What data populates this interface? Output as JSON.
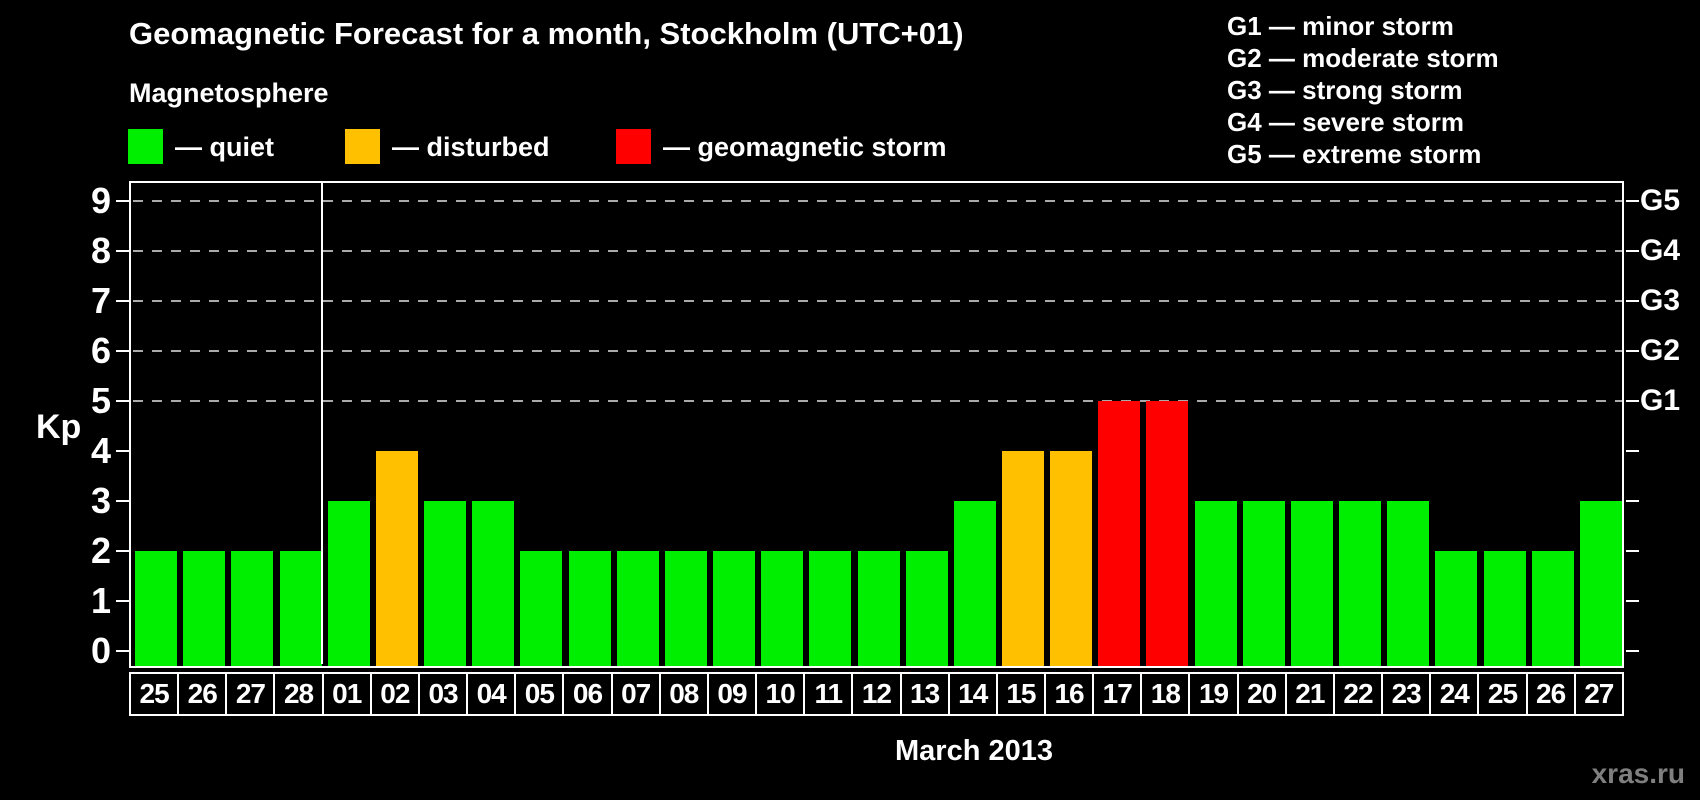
{
  "header": {
    "title": "Geomagnetic Forecast for a month, Stockholm (UTC+01)"
  },
  "magnetosphere_legend": {
    "title": "Magnetosphere",
    "items": [
      {
        "status": "quiet",
        "label": "— quiet",
        "color": "#00EE00"
      },
      {
        "status": "disturbed",
        "label": "— disturbed",
        "color": "#FFC000"
      },
      {
        "status": "storm",
        "label": "— geomagnetic storm",
        "color": "#FF0000"
      }
    ]
  },
  "g_scale_legend": {
    "lines": [
      "G1 — minor storm",
      "G2 — moderate storm",
      "G3 — strong storm",
      "G4 — severe storm",
      "G5 — extreme storm"
    ]
  },
  "axes": {
    "y_label": "Kp",
    "y_ticks": [
      "0",
      "1",
      "2",
      "3",
      "4",
      "5",
      "6",
      "7",
      "8",
      "9"
    ],
    "right_labels": [
      {
        "kp": 5,
        "label": "G1"
      },
      {
        "kp": 6,
        "label": "G2"
      },
      {
        "kp": 7,
        "label": "G3"
      },
      {
        "kp": 8,
        "label": "G4"
      },
      {
        "kp": 9,
        "label": "G5"
      }
    ],
    "x_label": "March 2013"
  },
  "watermark": "xras.ru",
  "chart_data": {
    "type": "bar",
    "title": "Geomagnetic Forecast for a month, Stockholm (UTC+01)",
    "xlabel": "March 2013",
    "ylabel": "Kp",
    "ylim": [
      0,
      9
    ],
    "grid": "horizontal dashed lines at Kp 5,6,7,8,9 (G1-G5 levels)",
    "legend_position": "top",
    "categories": [
      "25",
      "26",
      "27",
      "28",
      "01",
      "02",
      "03",
      "04",
      "05",
      "06",
      "07",
      "08",
      "09",
      "10",
      "11",
      "12",
      "13",
      "14",
      "15",
      "16",
      "17",
      "18",
      "19",
      "20",
      "21",
      "22",
      "23",
      "24",
      "25",
      "26",
      "27"
    ],
    "values": [
      2,
      2,
      2,
      2,
      3,
      4,
      3,
      3,
      2,
      2,
      2,
      2,
      2,
      2,
      2,
      2,
      2,
      3,
      4,
      4,
      5,
      5,
      3,
      3,
      3,
      3,
      3,
      2,
      2,
      2,
      3
    ],
    "statuses": [
      "quiet",
      "quiet",
      "quiet",
      "quiet",
      "quiet",
      "disturbed",
      "quiet",
      "quiet",
      "quiet",
      "quiet",
      "quiet",
      "quiet",
      "quiet",
      "quiet",
      "quiet",
      "quiet",
      "quiet",
      "quiet",
      "disturbed",
      "disturbed",
      "storm",
      "storm",
      "quiet",
      "quiet",
      "quiet",
      "quiet",
      "quiet",
      "quiet",
      "quiet",
      "quiet",
      "quiet"
    ],
    "status_colors": {
      "quiet": "#00EE00",
      "disturbed": "#FFC000",
      "storm": "#FF0000"
    },
    "month_boundary_after_index": 3
  }
}
